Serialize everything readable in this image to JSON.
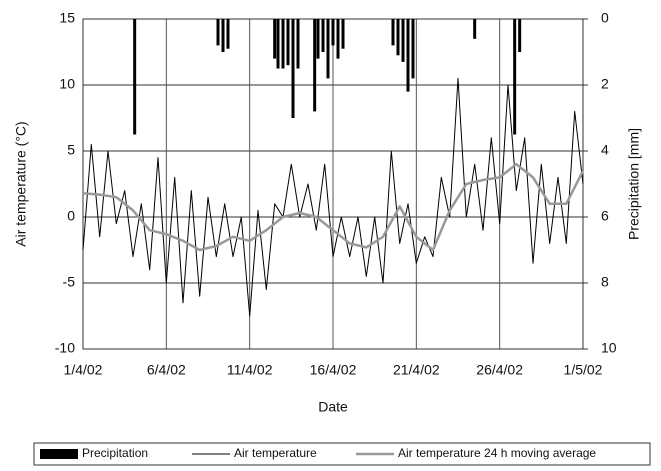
{
  "chart_data": {
    "type": "line",
    "y_label": "Air temperature (°C)",
    "y2_label": "Precipitation [mm]",
    "x_label": "Date",
    "xlim": [
      0,
      30
    ],
    "xticks": [
      {
        "value": 0,
        "label": "1/4/02"
      },
      {
        "value": 5,
        "label": "6/4/02"
      },
      {
        "value": 10,
        "label": "11/4/02"
      },
      {
        "value": 15,
        "label": "16/4/02"
      },
      {
        "value": 20,
        "label": "21/4/02"
      },
      {
        "value": 25,
        "label": "26/4/02"
      },
      {
        "value": 30,
        "label": "1/5/02"
      }
    ],
    "ylim": [
      -10,
      15
    ],
    "yticks": [
      -10,
      -5,
      0,
      5,
      10,
      15
    ],
    "y2lim": [
      0,
      10
    ],
    "y2ticks": [
      0,
      2,
      4,
      6,
      8,
      10
    ],
    "y2_inverted": true,
    "grid": true,
    "legend": "bottom",
    "series": [
      {
        "name": "Precipitation",
        "type": "bar",
        "axis": "y2",
        "color": "#000000",
        "x": [
          3.1,
          8.1,
          8.4,
          8.7,
          11.5,
          11.7,
          12.0,
          12.3,
          12.6,
          12.9,
          13.9,
          14.1,
          14.4,
          14.7,
          15.0,
          15.3,
          15.6,
          18.6,
          18.9,
          19.2,
          19.5,
          19.8,
          23.5,
          25.9,
          26.2
        ],
        "values": [
          3.5,
          0.8,
          1.0,
          0.9,
          1.2,
          1.5,
          1.5,
          1.4,
          3.0,
          1.5,
          2.8,
          1.2,
          1.0,
          1.8,
          0.8,
          1.2,
          0.9,
          0.8,
          1.1,
          1.3,
          2.2,
          1.8,
          0.6,
          3.5,
          1.0
        ]
      },
      {
        "name": "Air temperature",
        "type": "line",
        "color": "#000000",
        "width": 1,
        "x": [
          0,
          0.5,
          1,
          1.5,
          2,
          2.5,
          3,
          3.5,
          4,
          4.5,
          5,
          5.5,
          6,
          6.5,
          7,
          7.5,
          8,
          8.5,
          9,
          9.5,
          10,
          10.5,
          11,
          11.5,
          12,
          12.5,
          13,
          13.5,
          14,
          14.5,
          15,
          15.5,
          16,
          16.5,
          17,
          17.5,
          18,
          18.5,
          19,
          19.5,
          20,
          20.5,
          21,
          21.5,
          22,
          22.5,
          23,
          23.5,
          24,
          24.5,
          25,
          25.5,
          26,
          26.5,
          27,
          27.5,
          28,
          28.5,
          29,
          29.5,
          30
        ],
        "values": [
          -2.5,
          5.5,
          -1.5,
          5,
          -0.5,
          2,
          -3,
          1,
          -4,
          4.5,
          -5,
          3,
          -6.5,
          2,
          -6,
          1.5,
          -3,
          1,
          -3,
          0,
          -7.5,
          0.5,
          -5.5,
          1,
          0,
          4,
          0,
          2.5,
          -1,
          4,
          -3,
          0,
          -3,
          0,
          -4.5,
          0,
          -5,
          5,
          -2,
          1,
          -3.5,
          -1.5,
          -3,
          3,
          0,
          10.5,
          0,
          4,
          -1,
          6,
          -0.5,
          10,
          2,
          6,
          -3.5,
          4,
          -2,
          3,
          -2,
          8,
          2.5
        ]
      },
      {
        "name": "Air temperature 24 h moving average",
        "type": "line",
        "color": "#999999",
        "width": 2.5,
        "x": [
          0,
          1,
          2,
          3,
          4,
          5,
          6,
          7,
          8,
          9,
          10,
          11,
          12,
          13,
          14,
          15,
          16,
          17,
          18,
          19,
          20,
          21,
          22,
          23,
          24,
          25,
          26,
          27,
          28,
          29,
          30
        ],
        "values": [
          1.8,
          1.7,
          1.5,
          0.5,
          -1,
          -1.3,
          -1.8,
          -2.5,
          -2.2,
          -1.5,
          -1.8,
          -1,
          0,
          0.3,
          0,
          -1,
          -2,
          -2.3,
          -1.5,
          0.8,
          -1.5,
          -2.5,
          0.5,
          2.5,
          2.8,
          3,
          4,
          3,
          1,
          1,
          3.5
        ]
      }
    ]
  }
}
